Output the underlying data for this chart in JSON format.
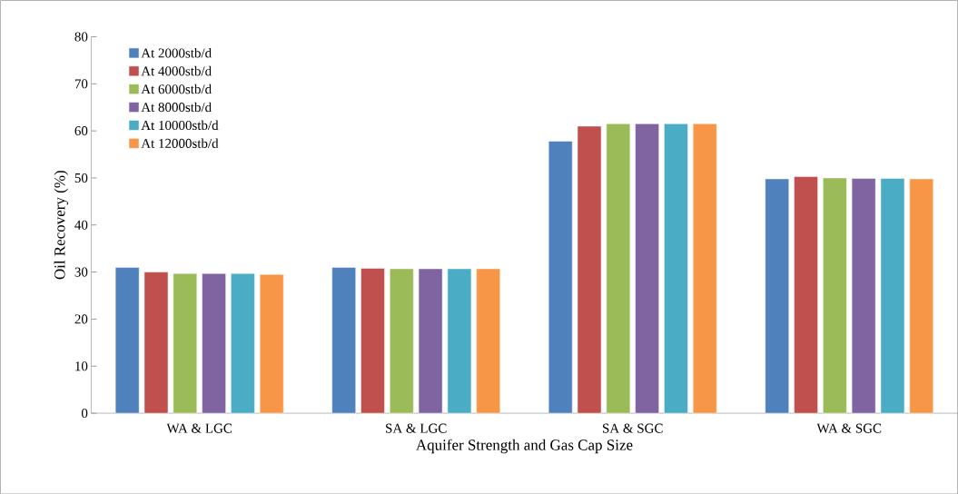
{
  "chart_data": {
    "type": "bar",
    "xlabel": "Aquifer Strength and Gas Cap Size",
    "ylabel": "Oil Recovery (%)",
    "categories": [
      "WA & LGC",
      "SA & LGC",
      "SA & SGC",
      "WA & SGC"
    ],
    "series": [
      {
        "name": "At 2000stb/d",
        "color": "#4f81bd",
        "values": [
          31,
          31,
          57.8,
          49.8
        ]
      },
      {
        "name": "At 4000stb/d",
        "color": "#c0504d",
        "values": [
          30,
          30.8,
          61,
          50.3
        ]
      },
      {
        "name": "At 6000stb/d",
        "color": "#9bbb59",
        "values": [
          29.7,
          30.7,
          61.5,
          50
        ]
      },
      {
        "name": "At 8000stb/d",
        "color": "#8064a2",
        "values": [
          29.7,
          30.7,
          61.5,
          49.9
        ]
      },
      {
        "name": "At 10000stb/d",
        "color": "#4bacc6",
        "values": [
          29.7,
          30.7,
          61.5,
          49.9
        ]
      },
      {
        "name": "At 12000stb/d",
        "color": "#f79646",
        "values": [
          29.5,
          30.7,
          61.5,
          49.8
        ]
      }
    ],
    "ylim": [
      0,
      80
    ],
    "yticks": [
      0,
      10,
      20,
      30,
      40,
      50,
      60,
      70,
      80
    ],
    "grid": false,
    "legend": "top left"
  }
}
